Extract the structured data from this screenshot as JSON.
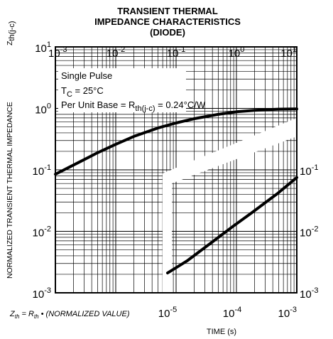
{
  "chart_data": {
    "type": "line",
    "title_lines": [
      "TRANSIENT THERMAL",
      "IMPEDANCE CHARACTERISTICS",
      "(DIODE)"
    ],
    "ylabel": "NORMALIZED TRANSIENT THERMAL IMPEDANCE",
    "ylabel_symbol": "Z",
    "ylabel_symbol_sub": "th(j-c)",
    "xlabel": "TIME (s)",
    "y_scale": "log",
    "x_scale": "log",
    "grid": true,
    "annotations": {
      "line1": "Single Pulse",
      "line2_main": "T",
      "line2_sub": "C",
      "line2_rest": " = 25°C",
      "line3_main": "Per Unit Base = R",
      "line3_sub": "th(j-c)",
      "line3_rest": " = 0.24°C/W"
    },
    "footnote": {
      "z": "Z",
      "z_sub": "th",
      "eq": " = R",
      "r_sub": "th",
      "rest": " • (NORMALIZED VALUE)"
    },
    "top_axis": {
      "range": [
        0.001,
        10
      ],
      "ticks": [
        {
          "base": "10",
          "exp": "-3"
        },
        {
          "base": "10",
          "exp": "-2"
        },
        {
          "base": "10",
          "exp": "-1"
        },
        {
          "base": "10",
          "exp": "0"
        },
        {
          "base": "10",
          "exp": "1"
        }
      ]
    },
    "bottom_axis": {
      "range": [
        1e-05,
        0.001
      ],
      "ticks": [
        {
          "base": "10",
          "exp": "-5"
        },
        {
          "base": "10",
          "exp": "-4"
        },
        {
          "base": "10",
          "exp": "-3"
        }
      ]
    },
    "left_axis": {
      "range": [
        0.001,
        10
      ],
      "ticks": [
        {
          "base": "10",
          "exp": "1"
        },
        {
          "base": "10",
          "exp": "0"
        },
        {
          "base": "10",
          "exp": "-1"
        },
        {
          "base": "10",
          "exp": "-2"
        },
        {
          "base": "10",
          "exp": "-3"
        }
      ]
    },
    "right_axis": {
      "range": [
        0.001,
        0.1
      ],
      "ticks": [
        {
          "base": "10",
          "exp": "-1"
        },
        {
          "base": "10",
          "exp": "-2"
        },
        {
          "base": "10",
          "exp": "-3"
        }
      ]
    },
    "series": [
      {
        "axis": "top-left",
        "x": [
          0.001,
          0.002,
          0.005,
          0.01,
          0.02,
          0.05,
          0.1,
          0.2,
          0.5,
          1,
          2,
          5,
          10
        ],
        "y": [
          0.085,
          0.12,
          0.19,
          0.26,
          0.35,
          0.48,
          0.58,
          0.68,
          0.8,
          0.88,
          0.93,
          0.97,
          0.98
        ]
      },
      {
        "axis": "bottom-right",
        "x": [
          1e-05,
          2e-05,
          5e-05,
          0.0001,
          0.0002,
          0.0005,
          0.001
        ],
        "y": [
          0.0021,
          0.0033,
          0.0068,
          0.0118,
          0.02,
          0.041,
          0.075
        ]
      }
    ]
  }
}
